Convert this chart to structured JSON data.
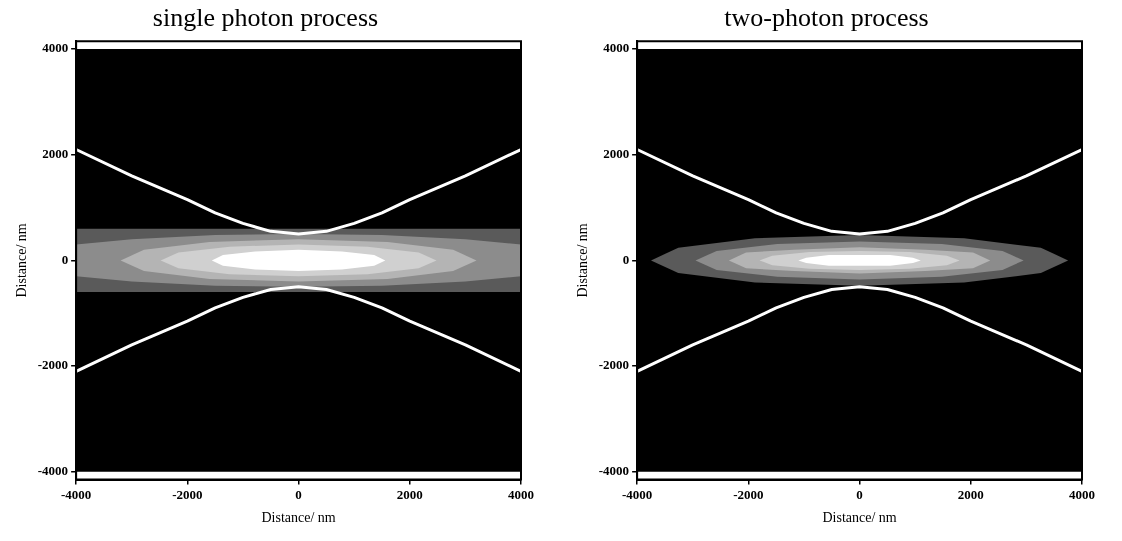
{
  "chart_data": [
    {
      "type": "line",
      "title": "single photon process",
      "xlabel": "Distance/ nm",
      "ylabel": "Distance/ nm",
      "xlim": [
        -4000,
        4000
      ],
      "ylim": [
        -4150,
        4150
      ],
      "xticks": [
        -4000,
        -2000,
        0,
        2000,
        4000
      ],
      "yticks": [
        -4000,
        -2000,
        0,
        2000,
        4000
      ],
      "bands": [
        {
          "axis": "y",
          "from": -4000,
          "to": 4000,
          "color": "#000000"
        }
      ],
      "series": [
        {
          "type": "area",
          "color": "#5a5a5a",
          "x": [
            -4000,
            4000,
            4000,
            -4000
          ],
          "values": [
            -600,
            -600,
            600,
            600
          ]
        },
        {
          "type": "area",
          "color": "#8c8c8c",
          "x": [
            -4000,
            -3000,
            -1500,
            0,
            1500,
            3000,
            4000,
            4000,
            3000,
            1500,
            0,
            -1500,
            -3000,
            -4000
          ],
          "values": [
            -300,
            -400,
            -480,
            -500,
            -480,
            -400,
            -300,
            300,
            400,
            480,
            500,
            480,
            400,
            300
          ]
        },
        {
          "type": "area",
          "color": "#b4b4b4",
          "x": [
            3200,
            2780,
            1600,
            0,
            -1600,
            -2780,
            -3200,
            -2780,
            -1600,
            0,
            1600,
            2780
          ],
          "values": [
            0,
            200,
            350,
            400,
            350,
            200,
            0,
            -200,
            -350,
            -400,
            -350,
            -200
          ]
        },
        {
          "type": "area",
          "color": "#d0d0d0",
          "x": [
            2480,
            2160,
            1240,
            0,
            -1240,
            -2160,
            -2480,
            -2160,
            -1240,
            0,
            1240,
            2160
          ],
          "values": [
            0,
            150,
            260,
            300,
            260,
            150,
            0,
            -150,
            -260,
            -300,
            -260,
            -150
          ]
        },
        {
          "type": "area",
          "color": "#ffffff",
          "x": [
            1560,
            1360,
            780,
            0,
            -780,
            -1360,
            -1560,
            -1360,
            -780,
            0,
            780,
            1360
          ],
          "values": [
            0,
            100,
            170,
            200,
            170,
            100,
            0,
            -100,
            -170,
            -200,
            -170,
            -100
          ]
        },
        {
          "type": "line",
          "color": "#ffffff",
          "x": [
            -4000,
            -3000,
            -2000,
            -1500,
            -1000,
            -500,
            0,
            500,
            1000,
            1500,
            2000,
            3000,
            4000
          ],
          "values": [
            2100,
            1600,
            1150,
            900,
            700,
            550,
            500,
            550,
            700,
            900,
            1150,
            1600,
            2100
          ]
        },
        {
          "type": "line",
          "color": "#ffffff",
          "x": [
            -4000,
            -3000,
            -2000,
            -1500,
            -1000,
            -500,
            0,
            500,
            1000,
            1500,
            2000,
            3000,
            4000
          ],
          "values": [
            -2100,
            -1600,
            -1150,
            -900,
            -700,
            -550,
            -500,
            -550,
            -700,
            -900,
            -1150,
            -1600,
            -2100
          ]
        }
      ]
    },
    {
      "type": "line",
      "title": "two-photon process",
      "xlabel": "Distance/ nm",
      "ylabel": "Distance/ nm",
      "xlim": [
        -4000,
        4000
      ],
      "ylim": [
        -4150,
        4150
      ],
      "xticks": [
        -4000,
        -2000,
        0,
        2000,
        4000
      ],
      "yticks": [
        -4000,
        -2000,
        0,
        2000,
        4000
      ],
      "bands": [
        {
          "axis": "y",
          "from": -4000,
          "to": 4000,
          "color": "#000000"
        }
      ],
      "series": [
        {
          "type": "area",
          "color": "#5a5a5a",
          "x": [
            3750,
            3260,
            1880,
            0,
            -1880,
            -3260,
            -3750,
            -3260,
            -1880,
            0,
            1880,
            3260
          ],
          "values": [
            0,
            240,
            420,
            480,
            420,
            240,
            0,
            -240,
            -420,
            -480,
            -420,
            -240
          ]
        },
        {
          "type": "area",
          "color": "#8c8c8c",
          "x": [
            2950,
            2570,
            1480,
            0,
            -1480,
            -2570,
            -2950,
            -2570,
            -1480,
            0,
            1480,
            2570
          ],
          "values": [
            0,
            180,
            310,
            360,
            310,
            180,
            0,
            -180,
            -310,
            -360,
            -310,
            -180
          ]
        },
        {
          "type": "area",
          "color": "#b4b4b4",
          "x": [
            2350,
            2040,
            1180,
            0,
            -1180,
            -2040,
            -2350,
            -2040,
            -1180,
            0,
            1180,
            2040
          ],
          "values": [
            0,
            150,
            200,
            250,
            200,
            150,
            0,
            -150,
            -200,
            -250,
            -200,
            -150
          ]
        },
        {
          "type": "area",
          "color": "#d0d0d0",
          "x": [
            1800,
            1570,
            900,
            0,
            -900,
            -1570,
            -1800,
            -1570,
            -900,
            0,
            900,
            1570
          ],
          "values": [
            0,
            90,
            160,
            180,
            160,
            90,
            0,
            -90,
            -160,
            -180,
            -160,
            -90
          ]
        },
        {
          "type": "area",
          "color": "#ffffff",
          "x": [
            1100,
            960,
            550,
            0,
            -550,
            -960,
            -1100,
            -960,
            -550,
            0,
            550,
            960
          ],
          "values": [
            0,
            50,
            100,
            100,
            100,
            50,
            0,
            -50,
            -100,
            -100,
            -100,
            -50
          ]
        },
        {
          "type": "line",
          "color": "#ffffff",
          "x": [
            -4000,
            -3000,
            -2000,
            -1500,
            -1000,
            -500,
            0,
            500,
            1000,
            1500,
            2000,
            3000,
            4000
          ],
          "values": [
            2100,
            1600,
            1150,
            900,
            700,
            550,
            500,
            550,
            700,
            900,
            1150,
            1600,
            2100
          ]
        },
        {
          "type": "line",
          "color": "#ffffff",
          "x": [
            -4000,
            -3000,
            -2000,
            -1500,
            -1000,
            -500,
            0,
            500,
            1000,
            1500,
            2000,
            3000,
            4000
          ],
          "values": [
            -2100,
            -1600,
            -1150,
            -900,
            -700,
            -550,
            -500,
            -550,
            -700,
            -900,
            -1150,
            -1600,
            -2100
          ]
        }
      ]
    }
  ]
}
